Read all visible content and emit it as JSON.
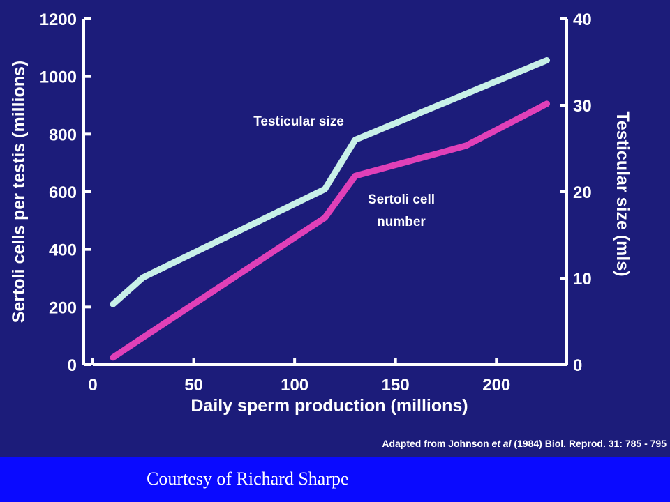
{
  "chart_data": {
    "type": "line",
    "xlabel": "Daily sperm production (millions)",
    "ylabel": "Sertoli cells per testis (millions)",
    "y2label": "Testicular size (mls)",
    "xlim": [
      0,
      230
    ],
    "ylim": [
      0,
      1200
    ],
    "y2lim": [
      0,
      40
    ],
    "x_ticks": [
      0,
      50,
      100,
      150,
      200
    ],
    "y_ticks": [
      0,
      200,
      400,
      600,
      800,
      1000,
      1200
    ],
    "y2_ticks": [
      0,
      10,
      20,
      30,
      40
    ],
    "grid": false,
    "series": [
      {
        "name": "Testicular size",
        "axis": "right",
        "color": "#c8f0e8",
        "x": [
          10,
          25,
          115,
          130,
          225
        ],
        "y": [
          7,
          10.1,
          20.3,
          26,
          35.2
        ]
      },
      {
        "name": "Sertoli cell number",
        "axis": "left",
        "color": "#e040b8",
        "x": [
          10,
          25,
          115,
          130,
          185,
          225
        ],
        "y": [
          25,
          95,
          510,
          655,
          760,
          905
        ]
      }
    ],
    "annotations": {
      "testicular": "Testicular size",
      "sertoli_line1": "Sertoli cell",
      "sertoli_line2": "number"
    },
    "credit": {
      "prefix": "Adapted from Johnson ",
      "etal": "et al",
      "suffix": "  (1984)  Biol. Reprod.  31: 785 - 795"
    }
  },
  "footer": {
    "text": "Courtesy of Richard Sharpe"
  }
}
